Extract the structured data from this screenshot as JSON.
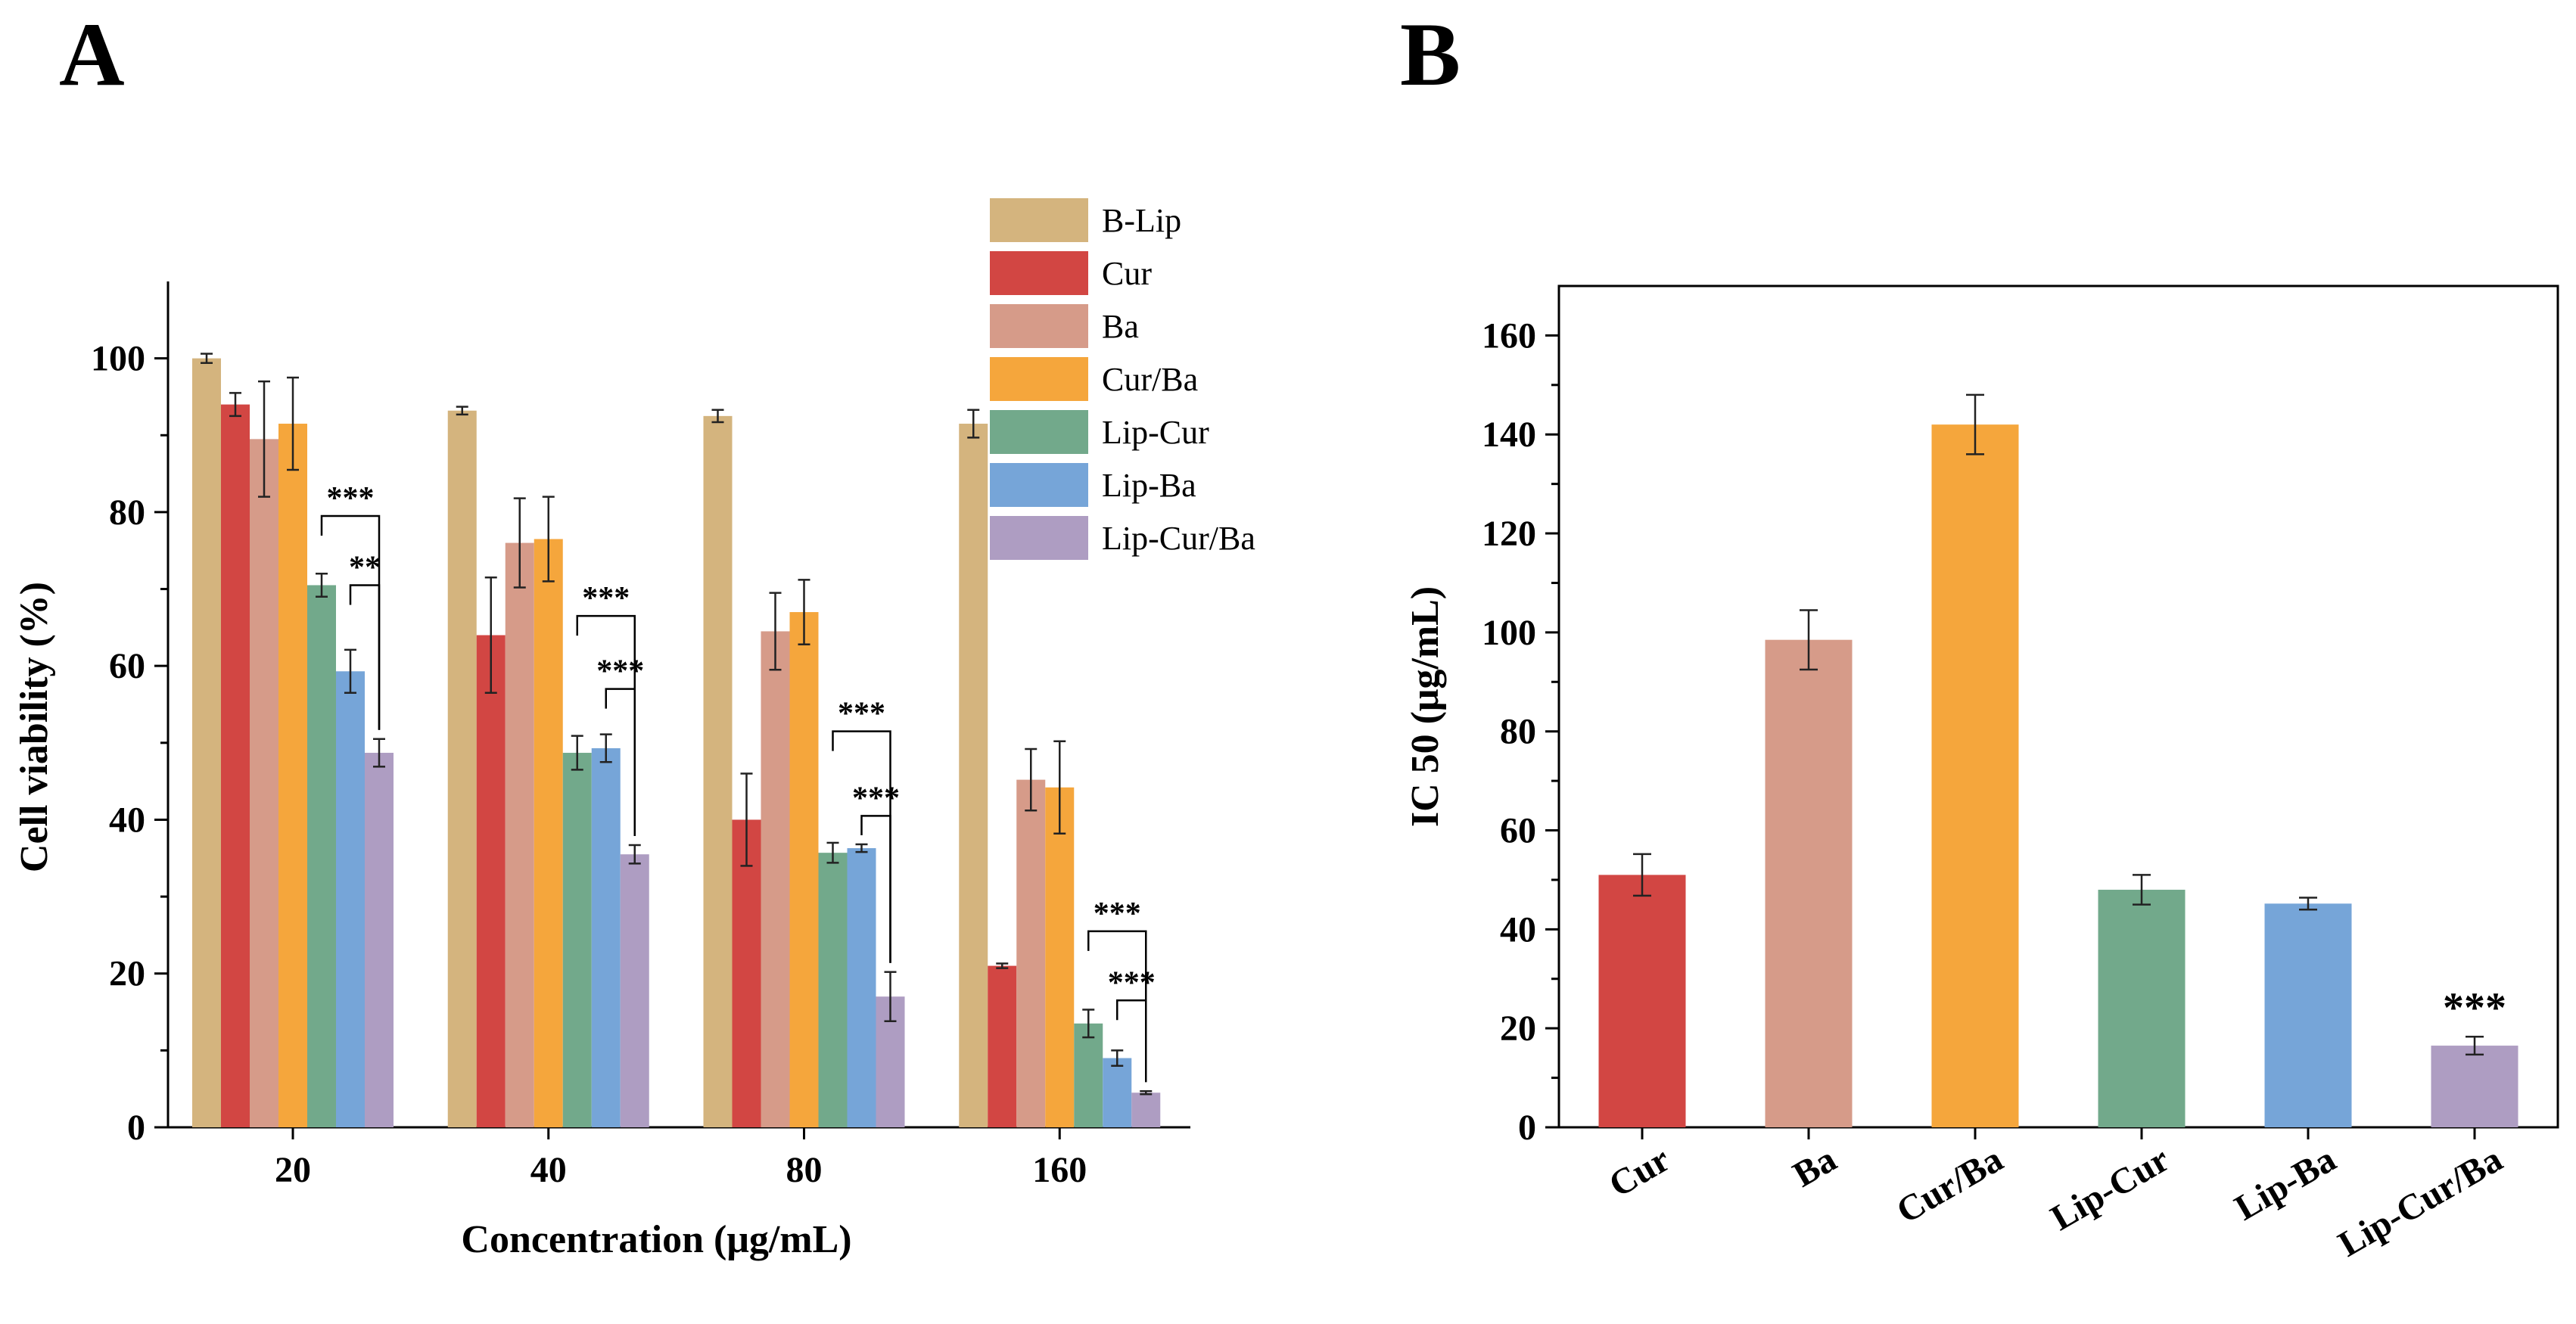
{
  "panels": {
    "a": {
      "label": "A"
    },
    "b": {
      "label": "B"
    }
  },
  "colors": {
    "B-Lip": "#D4B47E",
    "Cur": "#D24643",
    "Ba": "#D69B89",
    "Cur/Ba": "#F5A63C",
    "Lip-Cur": "#72A98B",
    "Lip-Ba": "#76A5D8",
    "Lip-Cur/Ba": "#AE9DC2"
  },
  "chart_data": [
    {
      "type": "bar",
      "panel": "A",
      "title": "",
      "xlabel": "Concentration (μg/mL)",
      "ylabel": "Cell viability (%)",
      "ylim": [
        0,
        110
      ],
      "yticks": [
        0,
        20,
        40,
        60,
        80,
        100
      ],
      "categories": [
        "20",
        "40",
        "80",
        "160"
      ],
      "legend_position": "top-right",
      "series": [
        {
          "name": "B-Lip",
          "values": [
            100,
            93.2,
            92.5,
            91.5
          ],
          "errors": [
            0.6,
            0.5,
            0.8,
            1.8
          ]
        },
        {
          "name": "Cur",
          "values": [
            94,
            64,
            40,
            21
          ],
          "errors": [
            1.5,
            7.5,
            6.0,
            0.3
          ]
        },
        {
          "name": "Ba",
          "values": [
            89.5,
            76,
            64.5,
            45.2
          ],
          "errors": [
            7.5,
            5.8,
            5.0,
            4.0
          ]
        },
        {
          "name": "Cur/Ba",
          "values": [
            91.5,
            76.5,
            67,
            44.2
          ],
          "errors": [
            6.0,
            5.5,
            4.2,
            6.0
          ]
        },
        {
          "name": "Lip-Cur",
          "values": [
            70.5,
            48.7,
            35.7,
            13.5
          ],
          "errors": [
            1.5,
            2.2,
            1.3,
            1.8
          ]
        },
        {
          "name": "Lip-Ba",
          "values": [
            59.3,
            49.3,
            36.3,
            9.0
          ],
          "errors": [
            2.8,
            1.8,
            0.5,
            1.0
          ]
        },
        {
          "name": "Lip-Cur/Ba",
          "values": [
            48.7,
            35.5,
            17.0,
            4.5
          ],
          "errors": [
            1.8,
            1.2,
            3.2,
            0.2
          ]
        }
      ],
      "annotations": [
        {
          "group": 0,
          "from": "Lip-Cur",
          "to": "Lip-Cur/Ba",
          "level": 79.5,
          "label": "***"
        },
        {
          "group": 0,
          "from": "Lip-Ba",
          "to": "Lip-Cur/Ba",
          "level": 70.5,
          "label": "**"
        },
        {
          "group": 1,
          "from": "Lip-Cur",
          "to": "Lip-Cur/Ba",
          "level": 66.5,
          "label": "***"
        },
        {
          "group": 1,
          "from": "Lip-Ba",
          "to": "Lip-Cur/Ba",
          "level": 57.0,
          "label": "***"
        },
        {
          "group": 2,
          "from": "Lip-Cur",
          "to": "Lip-Cur/Ba",
          "level": 51.5,
          "label": "***"
        },
        {
          "group": 2,
          "from": "Lip-Ba",
          "to": "Lip-Cur/Ba",
          "level": 40.5,
          "label": "***"
        },
        {
          "group": 3,
          "from": "Lip-Cur",
          "to": "Lip-Cur/Ba",
          "level": 25.5,
          "label": "***"
        },
        {
          "group": 3,
          "from": "Lip-Ba",
          "to": "Lip-Cur/Ba",
          "level": 16.5,
          "label": "***"
        }
      ]
    },
    {
      "type": "bar",
      "panel": "B",
      "title": "",
      "xlabel": "",
      "ylabel": "IC 50 (μg/mL)",
      "ylim": [
        0,
        170
      ],
      "yticks": [
        0,
        20,
        40,
        60,
        80,
        100,
        120,
        140,
        160
      ],
      "categories": [
        "Cur",
        "Ba",
        "Cur/Ba",
        "Lip-Cur",
        "Lip-Ba",
        "Lip-Cur/Ba"
      ],
      "values": [
        51,
        98.5,
        142,
        48,
        45.2,
        16.5
      ],
      "errors": [
        4.2,
        6.0,
        6.0,
        3.0,
        1.2,
        1.8
      ],
      "annotations": [
        {
          "category": "Lip-Cur/Ba",
          "label": "***"
        }
      ]
    }
  ]
}
